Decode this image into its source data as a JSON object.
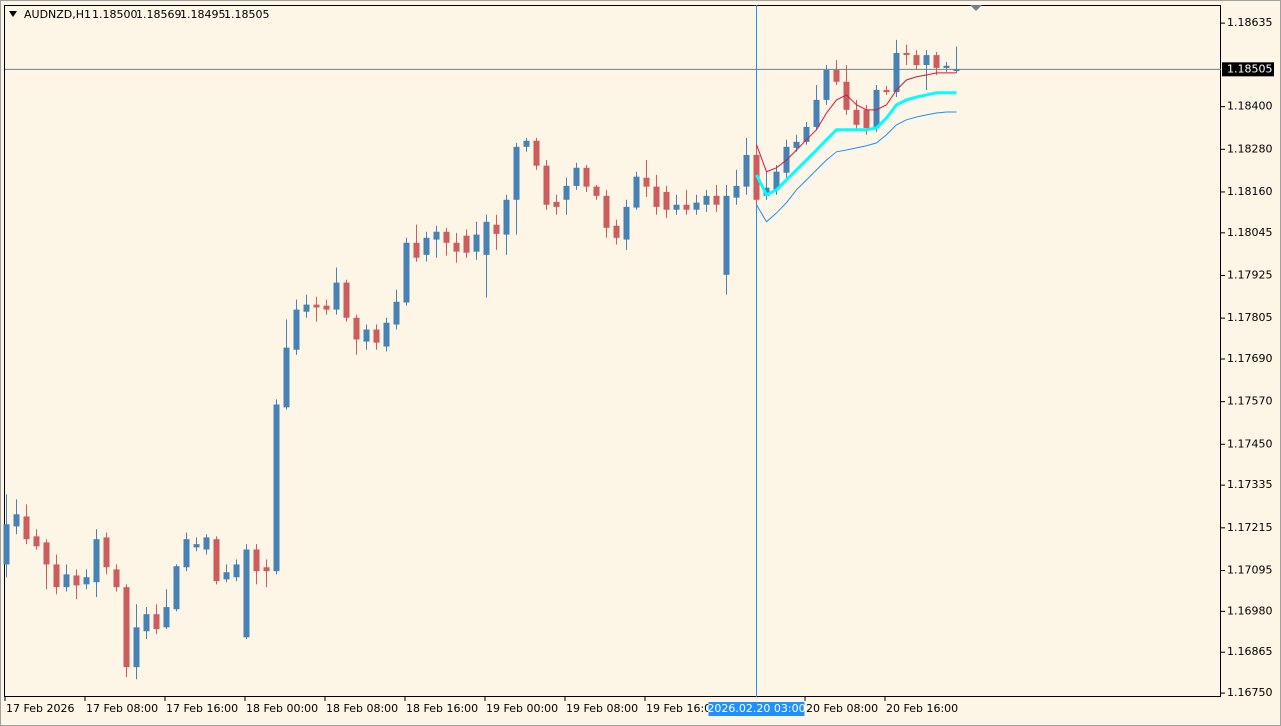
{
  "chart_data": {
    "type": "candlestick",
    "title": "AUDNZD,H1",
    "title_values": [
      "1.18500",
      "1.18569",
      "1.18495",
      "1.18505"
    ],
    "up_color": "#4682b4",
    "down_color": "#cd5c5c",
    "background": "#fdf5e6",
    "categories": [
      "17 Feb 2026",
      null,
      null,
      null,
      null,
      null,
      null,
      null,
      "17 Feb 08:00",
      null,
      null,
      null,
      null,
      null,
      null,
      null,
      "17 Feb 16:00",
      null,
      null,
      null,
      null,
      null,
      null,
      null,
      "18 Feb 00:00",
      null,
      null,
      null,
      null,
      null,
      null,
      null,
      "18 Feb 08:00",
      null,
      null,
      null,
      null,
      null,
      null,
      null,
      "18 Feb 16:00",
      null,
      null,
      null,
      null,
      null,
      null,
      null,
      "19 Feb 00:00",
      null,
      null,
      null,
      null,
      null,
      null,
      null,
      "19 Feb 08:00",
      null,
      null,
      null,
      null,
      null,
      null,
      null,
      "19 Feb 16:00",
      null,
      null,
      null,
      null,
      null,
      null,
      null,
      null,
      null,
      null,
      null,
      null,
      null,
      null,
      null,
      "20 Feb 08:00",
      null,
      null,
      null,
      null,
      null,
      null,
      null,
      "20 Feb 16:00",
      null,
      null,
      null,
      null,
      null,
      null,
      null
    ],
    "open": [
      1.17112,
      1.17219,
      1.17247,
      1.17191,
      1.17174,
      1.17112,
      1.17048,
      1.17081,
      1.17056,
      1.17062,
      1.17188,
      1.17098,
      1.17048,
      1.16823,
      1.16924,
      1.16972,
      1.16935,
      1.16986,
      1.17104,
      1.1716,
      1.17154,
      1.17183,
      1.1707,
      1.17076,
      1.16907,
      1.17154,
      1.17104,
      1.17093,
      1.17554,
      1.17716,
      1.17823,
      1.17843,
      1.1784,
      1.17829,
      1.17905,
      1.17806,
      1.17739,
      1.17773,
      1.17725,
      1.17787,
      1.17849,
      1.18017,
      1.17983,
      1.18026,
      1.18048,
      1.18017,
      1.18037,
      1.17992,
      1.17983,
      1.18068,
      1.1804,
      1.18138,
      1.18287,
      1.18304,
      1.18234,
      1.18132,
      1.18138,
      1.18177,
      1.18228,
      1.18175,
      1.18149,
      1.18065,
      1.18026,
      1.18116,
      1.182,
      1.18175,
      1.1816,
      1.1811,
      1.18124,
      1.1811,
      1.18124,
      1.18149,
      1.17927,
      1.18144,
      1.18175,
      1.18264,
      1.18149,
      1.18166,
      1.18214,
      1.18284,
      1.18301,
      1.18343,
      1.18419,
      1.18503,
      1.1847,
      1.18391,
      1.18391,
      1.1834,
      1.18447,
      1.18441,
      1.18551,
      1.18545,
      1.18517,
      1.18545,
      1.18509,
      1.185
    ],
    "high": [
      1.17309,
      1.17295,
      1.17281,
      1.17211,
      1.17183,
      1.1714,
      1.17112,
      1.17098,
      1.17098,
      1.17211,
      1.17202,
      1.17112,
      1.17056,
      1.17,
      1.16992,
      1.17,
      1.17042,
      1.17112,
      1.17202,
      1.17188,
      1.17197,
      1.17191,
      1.17112,
      1.17126,
      1.17169,
      1.17169,
      1.17126,
      1.17576,
      1.17801,
      1.17857,
      1.17871,
      1.17865,
      1.17857,
      1.17947,
      1.17913,
      1.17815,
      1.17787,
      1.17787,
      1.17806,
      1.17885,
      1.18031,
      1.18068,
      1.18048,
      1.18065,
      1.18059,
      1.18045,
      1.18054,
      1.18076,
      1.18096,
      1.18096,
      1.18152,
      1.18298,
      1.18312,
      1.18312,
      1.1825,
      1.18152,
      1.182,
      1.18242,
      1.18236,
      1.1818,
      1.18166,
      1.18082,
      1.18138,
      1.18217,
      1.1825,
      1.18208,
      1.18177,
      1.18152,
      1.18166,
      1.18152,
      1.18166,
      1.1818,
      1.1818,
      1.18222,
      1.18312,
      1.18293,
      1.18217,
      1.18236,
      1.18307,
      1.18321,
      1.18357,
      1.18461,
      1.18517,
      1.18531,
      1.18517,
      1.18419,
      1.18405,
      1.18461,
      1.18458,
      1.18588,
      1.18574,
      1.18559,
      1.18559,
      1.18554,
      1.18526,
      1.18569
    ],
    "low": [
      1.17076,
      1.17197,
      1.17169,
      1.17154,
      1.17042,
      1.17028,
      1.17036,
      1.17014,
      1.17042,
      1.1702,
      1.17084,
      1.17036,
      1.16795,
      1.16789,
      1.16902,
      1.16916,
      1.1693,
      1.1698,
      1.17093,
      1.17149,
      1.1714,
      1.17056,
      1.17062,
      1.17065,
      1.16902,
      1.17056,
      1.17048,
      1.17084,
      1.17548,
      1.17702,
      1.17806,
      1.17795,
      1.17815,
      1.17815,
      1.17795,
      1.17702,
      1.17716,
      1.17716,
      1.17711,
      1.17773,
      1.1784,
      1.17964,
      1.17964,
      1.17975,
      1.17981,
      1.17961,
      1.17975,
      1.17969,
      1.17863,
      1.17997,
      1.17983,
      1.1804,
      1.18273,
      1.18222,
      1.1811,
      1.18096,
      1.18096,
      1.18166,
      1.1816,
      1.18138,
      1.18031,
      1.18012,
      1.17997,
      1.1811,
      1.18146,
      1.18096,
      1.18087,
      1.18096,
      1.18096,
      1.18096,
      1.18104,
      1.18104,
      1.17871,
      1.18124,
      1.18152,
      1.18124,
      1.18138,
      1.18152,
      1.182,
      1.18273,
      1.18293,
      1.18335,
      1.18405,
      1.18461,
      1.18377,
      1.18335,
      1.18321,
      1.18329,
      1.18433,
      1.18427,
      1.18517,
      1.18503,
      1.18447,
      1.18489,
      1.18498,
      1.18495
    ],
    "close": [
      1.17225,
      1.17253,
      1.17183,
      1.17163,
      1.17112,
      1.17048,
      1.17084,
      1.17053,
      1.17076,
      1.17183,
      1.17104,
      1.17048,
      1.16823,
      1.16935,
      1.16972,
      1.1693,
      1.16992,
      1.17107,
      1.17183,
      1.17169,
      1.17188,
      1.17065,
      1.1709,
      1.17112,
      1.17154,
      1.17093,
      1.17093,
      1.17562,
      1.17722,
      1.17829,
      1.17843,
      1.17835,
      1.17829,
      1.17905,
      1.17806,
      1.17745,
      1.17773,
      1.17736,
      1.17792,
      1.17851,
      1.18017,
      1.17975,
      1.18031,
      1.18048,
      1.18017,
      1.17992,
      1.17989,
      1.1804,
      1.18076,
      1.18042,
      1.18138,
      1.18287,
      1.18304,
      1.18234,
      1.18124,
      1.18118,
      1.18177,
      1.18228,
      1.18175,
      1.18149,
      1.18059,
      1.18031,
      1.18118,
      1.18203,
      1.18175,
      1.18118,
      1.1811,
      1.18124,
      1.1811,
      1.1813,
      1.18149,
      1.18124,
      1.18149,
      1.18177,
      1.18264,
      1.18138,
      1.18172,
      1.18217,
      1.18287,
      1.18301,
      1.18343,
      1.18419,
      1.18503,
      1.1847,
      1.18391,
      1.18349,
      1.1834,
      1.18447,
      1.18441,
      1.18551,
      1.18545,
      1.18517,
      1.18545,
      1.18509,
      1.18515,
      1.18505
    ],
    "series": [
      {
        "color": "#dc143c",
        "width": 1,
        "values": [
          null,
          null,
          null,
          null,
          null,
          null,
          null,
          null,
          null,
          null,
          null,
          null,
          null,
          null,
          null,
          null,
          null,
          null,
          null,
          null,
          null,
          null,
          null,
          null,
          null,
          null,
          null,
          null,
          null,
          null,
          null,
          null,
          null,
          null,
          null,
          null,
          null,
          null,
          null,
          null,
          null,
          null,
          null,
          null,
          null,
          null,
          null,
          null,
          null,
          null,
          null,
          null,
          null,
          null,
          null,
          null,
          null,
          null,
          null,
          null,
          null,
          null,
          null,
          null,
          null,
          null,
          null,
          null,
          null,
          null,
          null,
          null,
          null,
          null,
          null,
          1.18293,
          1.18217,
          1.18228,
          1.1825,
          1.18278,
          1.18307,
          1.18335,
          1.18382,
          1.18419,
          1.18433,
          1.18405,
          1.18391,
          1.18391,
          1.18405,
          1.18447,
          1.18475,
          1.18484,
          1.18489,
          1.18495,
          1.18495,
          1.18495
        ]
      },
      {
        "color": "#00ffff",
        "width": 3,
        "values": [
          null,
          null,
          null,
          null,
          null,
          null,
          null,
          null,
          null,
          null,
          null,
          null,
          null,
          null,
          null,
          null,
          null,
          null,
          null,
          null,
          null,
          null,
          null,
          null,
          null,
          null,
          null,
          null,
          null,
          null,
          null,
          null,
          null,
          null,
          null,
          null,
          null,
          null,
          null,
          null,
          null,
          null,
          null,
          null,
          null,
          null,
          null,
          null,
          null,
          null,
          null,
          null,
          null,
          null,
          null,
          null,
          null,
          null,
          null,
          null,
          null,
          null,
          null,
          null,
          null,
          null,
          null,
          null,
          null,
          null,
          null,
          null,
          null,
          null,
          null,
          1.18208,
          1.18152,
          1.18166,
          1.18194,
          1.18222,
          1.1825,
          1.18278,
          1.18307,
          1.18335,
          1.18335,
          1.18335,
          1.18335,
          1.1834,
          1.18368,
          1.18405,
          1.18419,
          1.18427,
          1.18433,
          1.18439,
          1.18439,
          1.18439
        ]
      },
      {
        "color": "#1e90ff",
        "width": 1,
        "values": [
          null,
          null,
          null,
          null,
          null,
          null,
          null,
          null,
          null,
          null,
          null,
          null,
          null,
          null,
          null,
          null,
          null,
          null,
          null,
          null,
          null,
          null,
          null,
          null,
          null,
          null,
          null,
          null,
          null,
          null,
          null,
          null,
          null,
          null,
          null,
          null,
          null,
          null,
          null,
          null,
          null,
          null,
          null,
          null,
          null,
          null,
          null,
          null,
          null,
          null,
          null,
          null,
          null,
          null,
          null,
          null,
          null,
          null,
          null,
          null,
          null,
          null,
          null,
          null,
          null,
          null,
          null,
          null,
          null,
          null,
          null,
          null,
          null,
          null,
          null,
          1.18124,
          1.18076,
          1.18101,
          1.1813,
          1.18166,
          1.18194,
          1.18222,
          1.1825,
          1.18273,
          1.18278,
          1.18284,
          1.1829,
          1.18298,
          1.18321,
          1.18349,
          1.18363,
          1.18371,
          1.18377,
          1.18382,
          1.18385,
          1.18385
        ]
      }
    ],
    "ylim": [
      1.16739,
      1.18686
    ],
    "yticks": [
      1.18635,
      {
        "value": 1.184,
        "label": "1.18400"
      },
      {
        "value": 1.1828,
        "label": "1.18280"
      },
      {
        "value": 1.1816,
        "label": "1.18160"
      },
      1.18045,
      1.17925,
      1.17805,
      {
        "value": 1.1769,
        "label": "1.17690"
      },
      {
        "value": 1.1757,
        "label": "1.17570"
      },
      {
        "value": 1.1745,
        "label": "1.17450"
      },
      1.17335,
      1.17215,
      1.17095,
      {
        "value": 1.1698,
        "label": "1.16980"
      },
      1.16865,
      {
        "value": 1.1675,
        "label": "1.16750"
      }
    ],
    "current_price": 1.18505,
    "crosshair": {
      "index": 75,
      "label": "2026.02.20 03:00"
    }
  }
}
